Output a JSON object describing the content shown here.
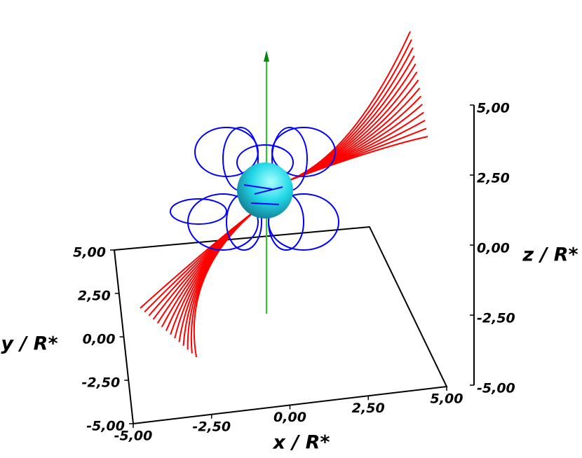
{
  "chart_data": {
    "type": "field-lines-3d",
    "xlabel": "x / R*",
    "ylabel": "y / R*",
    "zlabel": "z / R*",
    "xlim": [
      -5,
      5
    ],
    "ylim": [
      -5,
      5
    ],
    "zlim": [
      -5,
      5
    ],
    "xticks": [
      {
        "value": -5,
        "label": "-5,00"
      },
      {
        "value": -2.5,
        "label": "-2,50"
      },
      {
        "value": 0,
        "label": "0,00"
      },
      {
        "value": 2.5,
        "label": "2,50"
      },
      {
        "value": 5,
        "label": "5,00"
      }
    ],
    "yticks": [
      {
        "value": -5,
        "label": "-5,00"
      },
      {
        "value": -2.5,
        "label": "-2,50"
      },
      {
        "value": 0,
        "label": "0,00"
      },
      {
        "value": 2.5,
        "label": "2,50"
      },
      {
        "value": 5,
        "label": "5,00"
      }
    ],
    "zticks": [
      {
        "value": -5,
        "label": "-5,00"
      },
      {
        "value": -2.5,
        "label": "-2,50"
      },
      {
        "value": 0,
        "label": "0,00"
      },
      {
        "value": 2.5,
        "label": "2,50"
      },
      {
        "value": 5,
        "label": "5,00"
      }
    ]
  }
}
